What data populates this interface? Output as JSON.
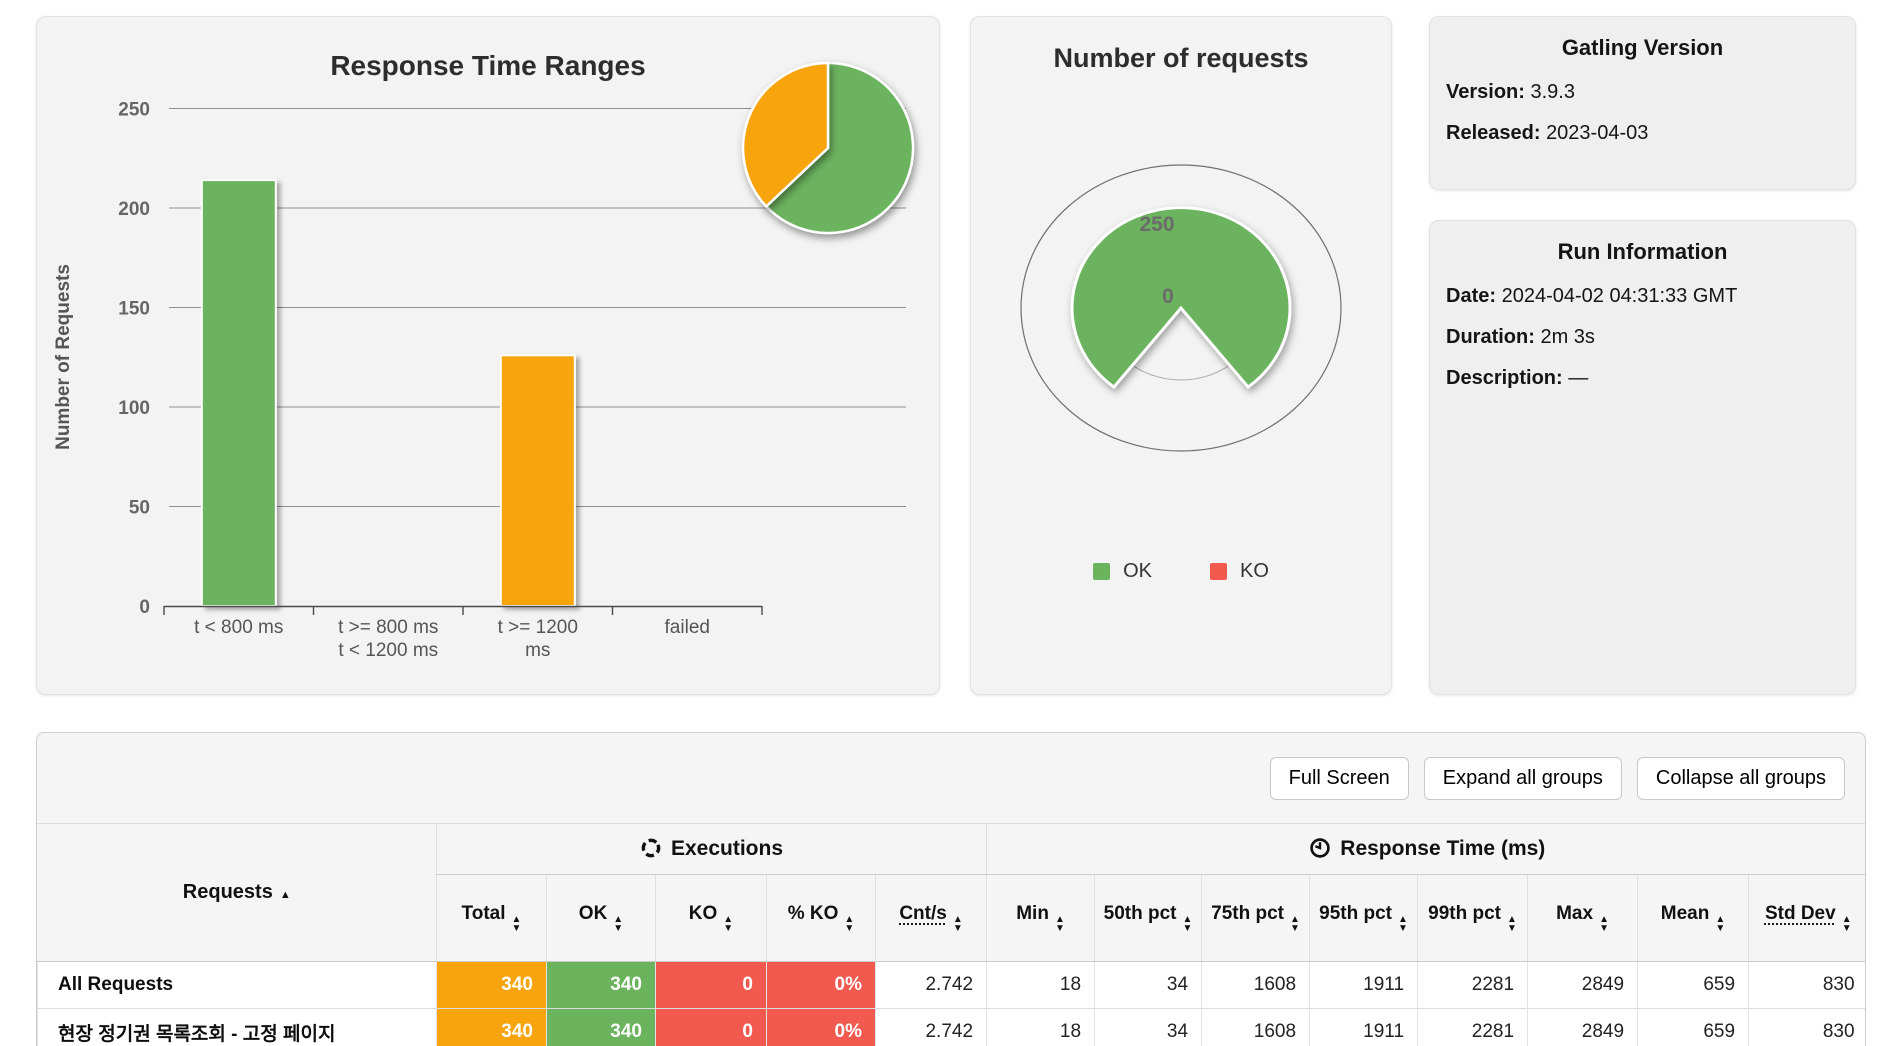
{
  "colors": {
    "green": "#6cb35e",
    "orange": "#f8a40c",
    "red": "#f25a50",
    "grid": "#8f8f8f"
  },
  "panels": {
    "number_of_requests": {
      "legend": [
        {
          "label": "OK",
          "color": "#6cb35e"
        },
        {
          "label": "KO",
          "color": "#f25a50"
        }
      ]
    },
    "gatling_version": {
      "title": "Gatling Version",
      "fields": [
        {
          "label": "Version:",
          "value": "3.9.3"
        },
        {
          "label": "Released:",
          "value": "2023-04-03"
        }
      ]
    },
    "run_information": {
      "title": "Run Information",
      "fields": [
        {
          "label": "Date:",
          "value": "2024-04-02 04:31:33 GMT"
        },
        {
          "label": "Duration:",
          "value": "2m 3s"
        },
        {
          "label": "Description:",
          "value": "—"
        }
      ]
    }
  },
  "chart_data": [
    {
      "type": "bar",
      "title": "Response Time Ranges",
      "xlabel": "",
      "ylabel": "Number of Requests",
      "categories": [
        [
          "t < 800 ms"
        ],
        [
          "t >= 800 ms",
          "t < 1200 ms"
        ],
        [
          "t >= 1200",
          "ms"
        ],
        [
          "failed"
        ]
      ],
      "values": [
        214,
        0,
        126,
        0
      ],
      "bar_colors": [
        "#6cb35e",
        "#f8a40c",
        "#f8a40c",
        "#f25a50"
      ],
      "yticks": [
        0,
        50,
        100,
        150,
        200,
        250
      ],
      "ylim": [
        0,
        250
      ],
      "grid": true
    },
    {
      "type": "pie",
      "labels": [
        "t < 800 ms",
        "t >= 1200 ms"
      ],
      "values": [
        214,
        126
      ],
      "colors": [
        "#6cb35e",
        "#f8a40c"
      ]
    },
    {
      "type": "gauge-pie",
      "title": "Number of requests",
      "series": [
        {
          "name": "OK",
          "value": 340,
          "color": "#6cb35e"
        },
        {
          "name": "KO",
          "value": 0,
          "color": "#f25a50"
        }
      ],
      "axis_ticks": [
        250,
        0
      ],
      "axis_max": 340,
      "legend_position": "bottom"
    }
  ],
  "table": {
    "buttons": [
      "Full Screen",
      "Expand all groups",
      "Collapse all groups"
    ],
    "requests_header": "Requests",
    "groups": [
      {
        "label": "Executions",
        "icon": "executions-refresh-icon"
      },
      {
        "label": "Response Time (ms)",
        "icon": "clock-icon"
      }
    ],
    "columns": [
      {
        "label": "Total"
      },
      {
        "label": "OK"
      },
      {
        "label": "KO"
      },
      {
        "label": "% KO"
      },
      {
        "label": "Cnt/s",
        "abbr": true
      },
      {
        "label": "Min"
      },
      {
        "label": "50th pct"
      },
      {
        "label": "75th pct"
      },
      {
        "label": "95th pct"
      },
      {
        "label": "99th pct"
      },
      {
        "label": "Max"
      },
      {
        "label": "Mean"
      },
      {
        "label": "Std Dev",
        "abbr": true
      }
    ],
    "rows": [
      {
        "name": "All Requests",
        "total": "340",
        "ok": "340",
        "ko": "0",
        "pct_ko": "0%",
        "cnt_s": "2.742",
        "min": "18",
        "p50": "34",
        "p75": "1608",
        "p95": "1911",
        "p99": "2281",
        "max": "2849",
        "mean": "659",
        "std_dev": "830"
      },
      {
        "name": "현장 정기권 목록조회 - 고정 페이지",
        "total": "340",
        "ok": "340",
        "ko": "0",
        "pct_ko": "0%",
        "cnt_s": "2.742",
        "min": "18",
        "p50": "34",
        "p75": "1608",
        "p95": "1911",
        "p99": "2281",
        "max": "2849",
        "mean": "659",
        "std_dev": "830"
      }
    ]
  }
}
